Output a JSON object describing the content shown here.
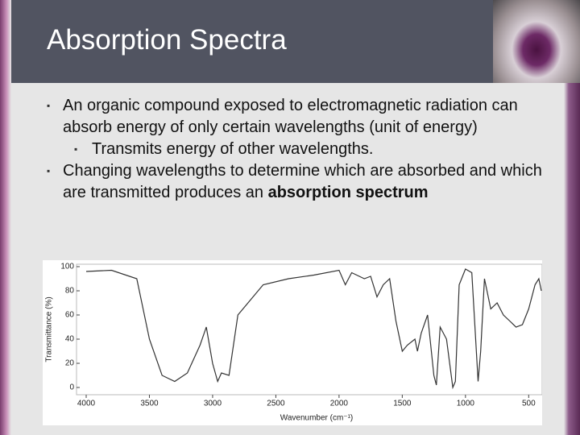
{
  "slide": {
    "title": "Absorption Spectra",
    "bullets": [
      {
        "text": "An organic compound exposed to electromagnetic radiation can absorb energy of only certain wavelengths (unit of energy)",
        "sub": [
          "Transmits energy of other wavelengths."
        ]
      },
      {
        "text": "Changing wavelengths to determine which are absorbed and which are transmitted produces an",
        "bold": "absorption spectrum"
      }
    ]
  },
  "chart_data": {
    "type": "line",
    "x_label": "Wavenumber (cm⁻¹)",
    "y_label": "Transmittance (%)",
    "color": "#333333",
    "x": [
      4000,
      3800,
      3600,
      3500,
      3400,
      3300,
      3200,
      3100,
      3050,
      3000,
      2960,
      2930,
      2870,
      2800,
      2600,
      2400,
      2200,
      2000,
      1950,
      1900,
      1800,
      1750,
      1700,
      1650,
      1600,
      1550,
      1500,
      1460,
      1400,
      1380,
      1350,
      1300,
      1250,
      1230,
      1200,
      1150,
      1100,
      1080,
      1050,
      1000,
      950,
      900,
      880,
      850,
      800,
      750,
      700,
      650,
      600,
      550,
      500,
      450,
      420,
      400
    ],
    "values": [
      96,
      97,
      90,
      40,
      10,
      5,
      12,
      35,
      50,
      20,
      5,
      12,
      10,
      60,
      85,
      90,
      93,
      97,
      85,
      95,
      90,
      92,
      75,
      85,
      90,
      55,
      30,
      35,
      40,
      30,
      45,
      60,
      10,
      2,
      50,
      40,
      0,
      5,
      85,
      98,
      95,
      5,
      30,
      90,
      65,
      70,
      60,
      55,
      50,
      52,
      65,
      85,
      90,
      80
    ],
    "xlim": [
      4000,
      400
    ],
    "ylim": [
      -6,
      102
    ],
    "xticks": [
      4000,
      3500,
      3000,
      2500,
      2000,
      1500,
      1000,
      500
    ],
    "yticks": [
      0,
      20,
      40,
      60,
      80,
      100
    ]
  }
}
